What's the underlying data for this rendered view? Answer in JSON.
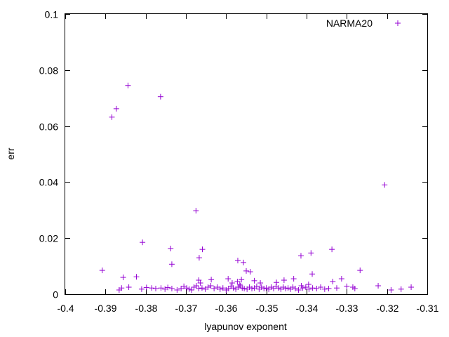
{
  "chart_data": {
    "type": "scatter",
    "title": "",
    "xlabel": "lyapunov exponent",
    "ylabel": "err",
    "xlim": [
      -0.4,
      -0.31
    ],
    "ylim": [
      0,
      0.1
    ],
    "x_ticks": [
      -0.4,
      -0.39,
      -0.38,
      -0.37,
      -0.36,
      -0.35,
      -0.34,
      -0.33,
      -0.32,
      -0.31
    ],
    "x_tick_labels": [
      "-0.4",
      "-0.39",
      "-0.38",
      "-0.37",
      "-0.36",
      "-0.35",
      "-0.34",
      "-0.33",
      "-0.32",
      "-0.31"
    ],
    "y_ticks": [
      0,
      0.02,
      0.04,
      0.06,
      0.08,
      0.1
    ],
    "y_tick_labels": [
      "0",
      "0.02",
      "0.04",
      "0.06",
      "0.08",
      "0.1"
    ],
    "grid": false,
    "legend": {
      "position": "top-right",
      "entries": [
        "NARMA20"
      ]
    },
    "series": [
      {
        "name": "NARMA20",
        "marker": "plus",
        "color": "#9400d3",
        "points": [
          [
            -0.3908,
            0.0085
          ],
          [
            -0.3884,
            0.0632
          ],
          [
            -0.3873,
            0.0662
          ],
          [
            -0.3844,
            0.0745
          ],
          [
            -0.3763,
            0.0705
          ],
          [
            -0.3675,
            0.0298
          ],
          [
            -0.3206,
            0.039
          ],
          [
            -0.3808,
            0.0185
          ],
          [
            -0.3738,
            0.0163
          ],
          [
            -0.3735,
            0.0107
          ],
          [
            -0.3659,
            0.016
          ],
          [
            -0.3667,
            0.013
          ],
          [
            -0.3571,
            0.012
          ],
          [
            -0.3557,
            0.0113
          ],
          [
            -0.355,
            0.0083
          ],
          [
            -0.354,
            0.008
          ],
          [
            -0.3414,
            0.0137
          ],
          [
            -0.3389,
            0.0147
          ],
          [
            -0.3386,
            0.0072
          ],
          [
            -0.3337,
            0.016
          ],
          [
            -0.3267,
            0.0085
          ],
          [
            -0.3856,
            0.006
          ],
          [
            -0.3823,
            0.0062
          ],
          [
            -0.3668,
            0.005
          ],
          [
            -0.3664,
            0.004
          ],
          [
            -0.3637,
            0.0052
          ],
          [
            -0.3595,
            0.0055
          ],
          [
            -0.3585,
            0.004
          ],
          [
            -0.3572,
            0.0045
          ],
          [
            -0.3566,
            0.0035
          ],
          [
            -0.3562,
            0.0052
          ],
          [
            -0.353,
            0.0048
          ],
          [
            -0.3515,
            0.004
          ],
          [
            -0.3475,
            0.0042
          ],
          [
            -0.3456,
            0.005
          ],
          [
            -0.3432,
            0.0055
          ],
          [
            -0.3413,
            0.003
          ],
          [
            -0.3395,
            0.0035
          ],
          [
            -0.3335,
            0.0045
          ],
          [
            -0.3313,
            0.0055
          ],
          [
            -0.3285,
            0.0025
          ],
          [
            -0.3222,
            0.003
          ],
          [
            -0.3866,
            0.0015
          ],
          [
            -0.386,
            0.0022
          ],
          [
            -0.3842,
            0.0025
          ],
          [
            -0.381,
            0.0018
          ],
          [
            -0.3798,
            0.0024
          ],
          [
            -0.3785,
            0.0022
          ],
          [
            -0.3775,
            0.002
          ],
          [
            -0.3762,
            0.0022
          ],
          [
            -0.3752,
            0.0018
          ],
          [
            -0.3745,
            0.0024
          ],
          [
            -0.3735,
            0.002
          ],
          [
            -0.3722,
            0.0015
          ],
          [
            -0.3712,
            0.002
          ],
          [
            -0.3705,
            0.0028
          ],
          [
            -0.3698,
            0.0022
          ],
          [
            -0.3692,
            0.0018
          ],
          [
            -0.3686,
            0.0015
          ],
          [
            -0.368,
            0.0025
          ],
          [
            -0.3674,
            0.003
          ],
          [
            -0.3668,
            0.002
          ],
          [
            -0.366,
            0.0022
          ],
          [
            -0.3652,
            0.0018
          ],
          [
            -0.3645,
            0.0025
          ],
          [
            -0.3638,
            0.003
          ],
          [
            -0.363,
            0.002
          ],
          [
            -0.3622,
            0.0025
          ],
          [
            -0.3615,
            0.0018
          ],
          [
            -0.3608,
            0.0022
          ],
          [
            -0.36,
            0.0015
          ],
          [
            -0.3594,
            0.002
          ],
          [
            -0.3588,
            0.0028
          ],
          [
            -0.3582,
            0.0022
          ],
          [
            -0.3576,
            0.0018
          ],
          [
            -0.357,
            0.0025
          ],
          [
            -0.3565,
            0.003
          ],
          [
            -0.356,
            0.0022
          ],
          [
            -0.3555,
            0.002
          ],
          [
            -0.3548,
            0.0018
          ],
          [
            -0.3542,
            0.0025
          ],
          [
            -0.3536,
            0.002
          ],
          [
            -0.353,
            0.0022
          ],
          [
            -0.3524,
            0.0028
          ],
          [
            -0.3518,
            0.0018
          ],
          [
            -0.3512,
            0.0025
          ],
          [
            -0.3506,
            0.002
          ],
          [
            -0.35,
            0.0022
          ],
          [
            -0.3494,
            0.0018
          ],
          [
            -0.3488,
            0.0025
          ],
          [
            -0.3482,
            0.002
          ],
          [
            -0.3476,
            0.0028
          ],
          [
            -0.347,
            0.0022
          ],
          [
            -0.3464,
            0.0018
          ],
          [
            -0.3458,
            0.0025
          ],
          [
            -0.3452,
            0.002
          ],
          [
            -0.3446,
            0.0022
          ],
          [
            -0.344,
            0.0018
          ],
          [
            -0.3434,
            0.0025
          ],
          [
            -0.3428,
            0.002
          ],
          [
            -0.342,
            0.0015
          ],
          [
            -0.341,
            0.0022
          ],
          [
            -0.3402,
            0.0025
          ],
          [
            -0.3394,
            0.0018
          ],
          [
            -0.3385,
            0.0022
          ],
          [
            -0.3375,
            0.002
          ],
          [
            -0.3365,
            0.0025
          ],
          [
            -0.3355,
            0.0018
          ],
          [
            -0.3345,
            0.002
          ],
          [
            -0.3325,
            0.0022
          ],
          [
            -0.33,
            0.0028
          ],
          [
            -0.328,
            0.002
          ],
          [
            -0.319,
            0.0015
          ],
          [
            -0.3165,
            0.0018
          ],
          [
            -0.314,
            0.0025
          ]
        ]
      }
    ]
  }
}
